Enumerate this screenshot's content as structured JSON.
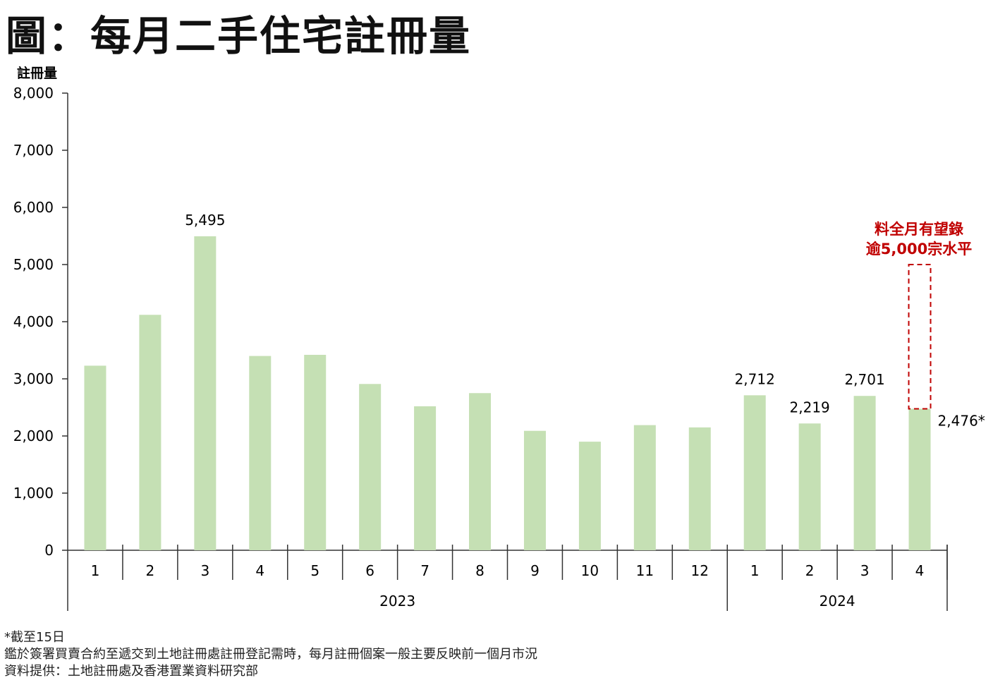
{
  "title": "圖：每月二手住宅註冊量",
  "chart_data": {
    "type": "bar",
    "title": "圖：每月二手住宅註冊量",
    "ylabel": "註冊量",
    "xlabel": "",
    "ylim": [
      0,
      8000
    ],
    "yticks": [
      0,
      1000,
      2000,
      3000,
      4000,
      5000,
      6000,
      7000,
      8000
    ],
    "ytick_labels": [
      "0",
      "1,000",
      "2,000",
      "3,000",
      "4,000",
      "5,000",
      "6,000",
      "7,000",
      "8,000"
    ],
    "categories": [
      "1",
      "2",
      "3",
      "4",
      "5",
      "6",
      "7",
      "8",
      "9",
      "10",
      "11",
      "12",
      "1",
      "2",
      "3",
      "4"
    ],
    "groups": [
      {
        "label": "2023",
        "count": 12
      },
      {
        "label": "2024",
        "count": 4
      }
    ],
    "values": [
      3230,
      4120,
      5495,
      3400,
      3420,
      2910,
      2520,
      2750,
      2090,
      1900,
      2190,
      2150,
      2712,
      2219,
      2701,
      2476
    ],
    "data_labels": {
      "2": "5,495",
      "12": "2,712",
      "13": "2,219",
      "14": "2,701",
      "15": "2,476*"
    },
    "bar_color": "#c5e0b4",
    "projection": {
      "index": 15,
      "value": 5000,
      "color": "#c00000",
      "label_lines": [
        "料全月有望錄",
        "逾5,000宗水平"
      ]
    },
    "grid": false
  },
  "notes": {
    "asterisk": "*截至15日",
    "line1": "鑑於簽署買賣合約至遞交到土地註冊處註冊登記需時，每月註冊個案一般主要反映前一個月市況",
    "source": "資料提供：土地註冊處及香港置業資料研究部"
  }
}
